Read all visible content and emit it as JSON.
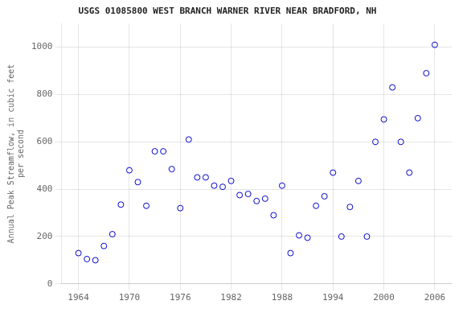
{
  "chart_data": {
    "type": "scatter",
    "title": "USGS 01085800 WEST BRANCH WARNER RIVER NEAR BRADFORD, NH",
    "ylabel": "Annual Peak Streamflow, in cubic feet\nper second",
    "x": [
      1964,
      1965,
      1966,
      1967,
      1968,
      1969,
      1970,
      1971,
      1972,
      1973,
      1974,
      1975,
      1976,
      1977,
      1978,
      1979,
      1980,
      1981,
      1982,
      1983,
      1984,
      1985,
      1986,
      1987,
      1988,
      1989,
      1990,
      1991,
      1992,
      1993,
      1994,
      1995,
      1996,
      1997,
      1998,
      1999,
      2000,
      2001,
      2002,
      2003,
      2004,
      2005,
      2006
    ],
    "values": [
      130,
      105,
      100,
      160,
      210,
      335,
      480,
      430,
      330,
      560,
      560,
      485,
      320,
      610,
      450,
      450,
      415,
      410,
      435,
      375,
      380,
      350,
      360,
      290,
      415,
      130,
      205,
      195,
      330,
      370,
      470,
      200,
      325,
      435,
      200,
      600,
      695,
      830,
      600,
      470,
      700,
      890,
      1010
    ],
    "color": "#0000cc",
    "marker": "circle",
    "xlim": [
      1962,
      2008
    ],
    "ylim": [
      0,
      1100
    ],
    "xticks": [
      1964,
      1970,
      1976,
      1982,
      1988,
      1994,
      2000,
      2006
    ],
    "yticks": [
      0,
      200,
      400,
      600,
      800,
      1000
    ],
    "grid": true
  }
}
